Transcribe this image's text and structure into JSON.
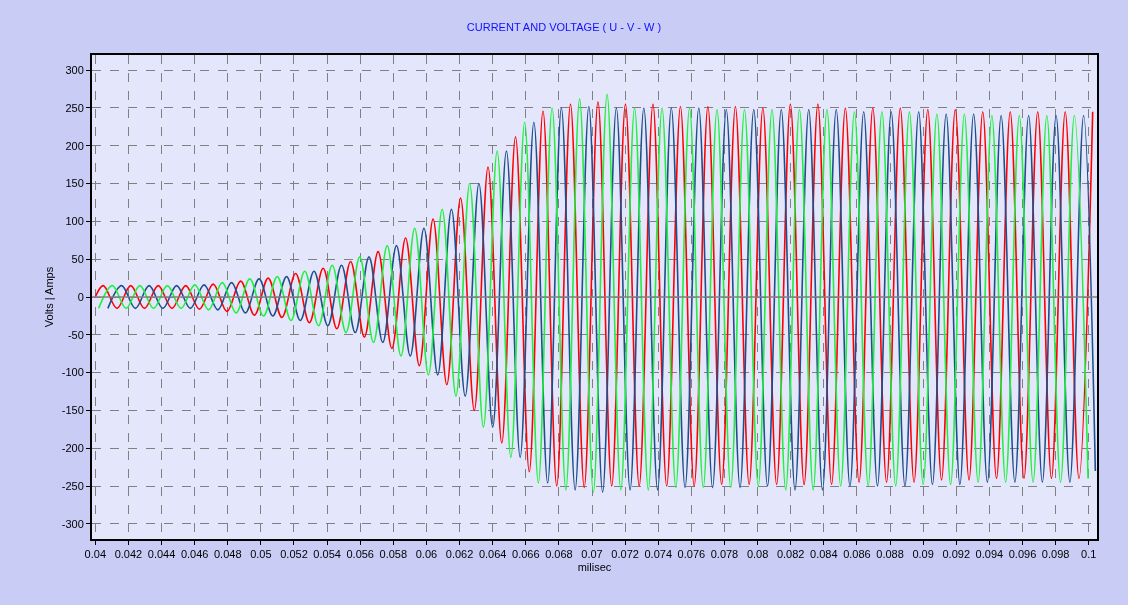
{
  "chart_data": {
    "type": "line",
    "title": "CURRENT AND VOLTAGE ( U - V - W )",
    "xlabel": "milisec",
    "ylabel": "Volts | Amps",
    "xlim": [
      0.0398,
      0.1005
    ],
    "xticks": [
      0.04,
      0.042,
      0.044,
      0.046,
      0.048,
      0.05,
      0.052,
      0.054,
      0.056,
      0.058,
      0.06,
      0.062,
      0.064,
      0.066,
      0.068,
      0.07,
      0.072,
      0.074,
      0.076,
      0.078,
      0.08,
      0.082,
      0.084,
      0.086,
      0.088,
      0.09,
      0.092,
      0.094,
      0.096,
      0.098,
      0.1
    ],
    "ylim": [
      -320,
      320
    ],
    "yticks": [
      -300,
      -250,
      -200,
      -150,
      -100,
      -50,
      0,
      50,
      100,
      150,
      200,
      250,
      300
    ],
    "grid": true,
    "marker": "none",
    "line_style": "solid",
    "ref_lines": [
      {
        "axis": "y",
        "value": 0,
        "color": "#808080"
      }
    ],
    "series": [
      {
        "color": "#ff0000",
        "x": [
          0.04,
          0.04048,
          0.04131,
          0.04214,
          0.04297,
          0.0438,
          0.04463,
          0.04546,
          0.04629,
          0.04712,
          0.04795,
          0.04878,
          0.04961,
          0.05044,
          0.05127,
          0.0521,
          0.05293,
          0.05376,
          0.05459,
          0.05542,
          0.05625,
          0.05708,
          0.05791,
          0.05874,
          0.05957,
          0.0604,
          0.06123,
          0.06206,
          0.06289,
          0.06372,
          0.06455,
          0.06538,
          0.06621,
          0.06704,
          0.06787,
          0.0687,
          0.06953,
          0.07036,
          0.07119,
          0.07202,
          0.07285,
          0.07368,
          0.07451,
          0.07534,
          0.07617,
          0.077,
          0.07783,
          0.07866,
          0.07949,
          0.08032,
          0.08115,
          0.08198,
          0.08281,
          0.08364,
          0.08447,
          0.0853,
          0.08613,
          0.08696,
          0.08779,
          0.08862,
          0.08945,
          0.09028,
          0.09111,
          0.09194,
          0.09277,
          0.0936,
          0.09443,
          0.09526,
          0.09609,
          0.09692,
          0.09775,
          0.09858,
          0.09941,
          0.10024
        ],
        "values": [
          0,
          15,
          -15,
          15,
          -15,
          15,
          -15,
          15,
          -16,
          17,
          -19,
          21,
          -24,
          25,
          -27,
          31,
          -34,
          38,
          -42,
          47,
          -53,
          60,
          -68,
          78,
          -91,
          103,
          -116,
          131,
          -150,
          172,
          -193,
          212,
          -231,
          246,
          -250,
          255,
          -252,
          258,
          -250,
          255,
          -250,
          255,
          -250,
          252,
          -250,
          252,
          -248,
          252,
          -248,
          250,
          -248,
          255,
          -248,
          255,
          -248,
          250,
          -245,
          250,
          -245,
          250,
          -245,
          248,
          -242,
          248,
          -242,
          245,
          -240,
          245,
          -240,
          245,
          -240,
          245,
          -240,
          245
        ]
      },
      {
        "color": "#1f4e8c",
        "x": [
          0.04076,
          0.04159,
          0.04242,
          0.04325,
          0.04408,
          0.04491,
          0.04574,
          0.04657,
          0.0474,
          0.04823,
          0.04906,
          0.04989,
          0.05072,
          0.05155,
          0.05238,
          0.05321,
          0.05404,
          0.05487,
          0.0557,
          0.05653,
          0.05736,
          0.05819,
          0.05902,
          0.05985,
          0.06068,
          0.06151,
          0.06234,
          0.06317,
          0.064,
          0.06483,
          0.06566,
          0.06649,
          0.06732,
          0.06815,
          0.06898,
          0.06981,
          0.07064,
          0.07147,
          0.0723,
          0.07313,
          0.07396,
          0.07479,
          0.07562,
          0.07645,
          0.07728,
          0.07811,
          0.07894,
          0.07977,
          0.0806,
          0.08143,
          0.08226,
          0.08309,
          0.08392,
          0.08475,
          0.08558,
          0.08641,
          0.08724,
          0.08807,
          0.0889,
          0.08973,
          0.09056,
          0.09139,
          0.09222,
          0.09305,
          0.09388,
          0.09471,
          0.09554,
          0.09637,
          0.0972,
          0.09803,
          0.09886,
          0.09969,
          0.1004
        ],
        "values": [
          -15,
          15,
          -15,
          15,
          -15,
          15,
          -15,
          16,
          -17,
          19,
          -21,
          24,
          -25,
          27,
          -31,
          34,
          -38,
          42,
          -47,
          53,
          -60,
          68,
          -78,
          91,
          -103,
          116,
          -131,
          150,
          -172,
          193,
          -212,
          231,
          -246,
          250,
          -255,
          252,
          -258,
          250,
          -255,
          250,
          -255,
          250,
          -252,
          250,
          -252,
          248,
          -252,
          248,
          -250,
          248,
          -255,
          248,
          -255,
          248,
          -250,
          245,
          -250,
          245,
          -250,
          245,
          -248,
          242,
          -248,
          242,
          -245,
          240,
          -245,
          240,
          -245,
          240,
          -245,
          240,
          -230
        ]
      },
      {
        "color": "#20f040",
        "x": [
          0.0402,
          0.04103,
          0.04186,
          0.04269,
          0.04352,
          0.04435,
          0.04518,
          0.04601,
          0.04684,
          0.04767,
          0.0485,
          0.04933,
          0.05016,
          0.05099,
          0.05182,
          0.05265,
          0.05348,
          0.05431,
          0.05514,
          0.05597,
          0.0568,
          0.05763,
          0.05846,
          0.05929,
          0.06012,
          0.06095,
          0.06178,
          0.06261,
          0.06344,
          0.06427,
          0.0651,
          0.06593,
          0.06676,
          0.06759,
          0.06842,
          0.06925,
          0.07008,
          0.07091,
          0.07174,
          0.07257,
          0.0734,
          0.07423,
          0.07506,
          0.07589,
          0.07672,
          0.07755,
          0.07838,
          0.07921,
          0.08004,
          0.08087,
          0.0817,
          0.08253,
          0.08336,
          0.08419,
          0.08502,
          0.08585,
          0.08668,
          0.08751,
          0.08834,
          0.08917,
          0.09,
          0.09083,
          0.09166,
          0.09249,
          0.09332,
          0.09415,
          0.09498,
          0.09581,
          0.09664,
          0.09747,
          0.0983,
          0.09913,
          0.09996
        ],
        "values": [
          -15,
          15,
          -15,
          15,
          -15,
          15,
          -15,
          16,
          -17,
          19,
          -21,
          24,
          -25,
          27,
          -31,
          34,
          -38,
          42,
          -47,
          53,
          -60,
          68,
          -78,
          91,
          -103,
          116,
          -131,
          150,
          -172,
          193,
          -212,
          231,
          -246,
          250,
          -255,
          262,
          -258,
          268,
          -255,
          250,
          -255,
          250,
          -252,
          250,
          -252,
          248,
          -252,
          248,
          -250,
          248,
          -255,
          248,
          -255,
          248,
          -250,
          245,
          -250,
          245,
          -250,
          245,
          -248,
          242,
          -248,
          242,
          -245,
          240,
          -245,
          240,
          -245,
          240,
          -245,
          240,
          -240
        ]
      }
    ]
  }
}
